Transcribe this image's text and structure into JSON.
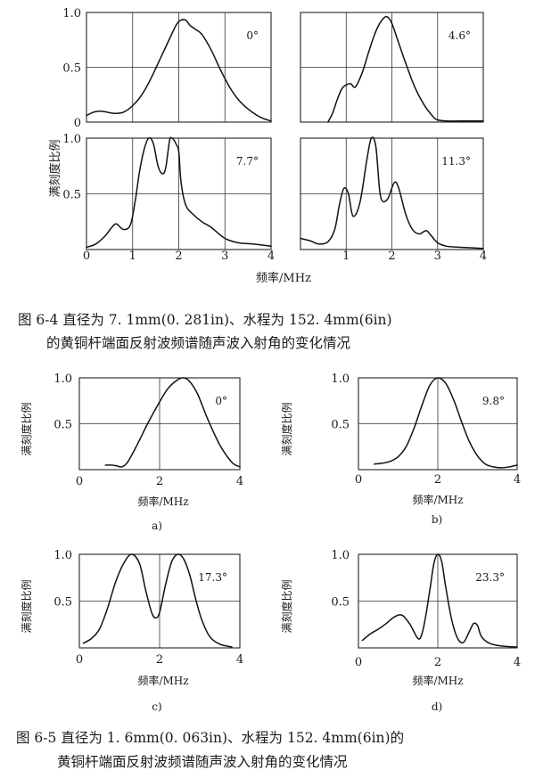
{
  "figure_6_4": {
    "caption_line1": "图 6-4   直径为 7. 1mm(0. 281in)、水程为 152. 4mm(6in)",
    "caption_line2": "的黄铜杆端面反射波频谱随声波入射角的变化情况",
    "ylabel": "满刻度比例",
    "xlabel": "频率/MHz"
  },
  "figure_6_5": {
    "caption_line1": "图 6-5   直径为 1. 6mm(0. 063in)、水程为 152. 4mm(6in)的",
    "caption_line2": "黄铜杆端面反射波频谱随声波入射角的变化情况"
  },
  "chart_data": [
    {
      "type": "line",
      "figure": "6-4",
      "panel": "top-left",
      "annotation": "0°",
      "xlim": [
        0,
        4
      ],
      "ylim": [
        0,
        1.0
      ],
      "xticks": [],
      "yticks": [
        "0",
        "0.5",
        "1.0"
      ],
      "xlabel": "",
      "ylabel": "",
      "series": [
        {
          "x": [
            0,
            0.15,
            0.3,
            0.45,
            0.6,
            0.8,
            1.0,
            1.2,
            1.4,
            1.6,
            1.8,
            1.95,
            2.05,
            2.15,
            2.25,
            2.35,
            2.5,
            2.7,
            2.9,
            3.1,
            3.3,
            3.5,
            3.7,
            3.85,
            4.0
          ],
          "y": [
            0.06,
            0.09,
            0.1,
            0.09,
            0.08,
            0.09,
            0.15,
            0.25,
            0.4,
            0.58,
            0.76,
            0.89,
            0.93,
            0.93,
            0.88,
            0.85,
            0.8,
            0.66,
            0.48,
            0.32,
            0.2,
            0.12,
            0.06,
            0.03,
            0.01
          ]
        }
      ]
    },
    {
      "type": "line",
      "figure": "6-4",
      "panel": "top-right",
      "annotation": "4.6°",
      "xlim": [
        0,
        4
      ],
      "ylim": [
        0,
        1.0
      ],
      "xticks": [],
      "yticks": [],
      "xlabel": "",
      "ylabel": "",
      "series": [
        {
          "x": [
            0.6,
            0.7,
            0.8,
            0.9,
            1.0,
            1.1,
            1.2,
            1.35,
            1.5,
            1.65,
            1.8,
            1.9,
            2.0,
            2.15,
            2.3,
            2.5,
            2.7,
            2.9,
            3.0,
            3.2,
            3.5,
            4.0
          ],
          "y": [
            0.0,
            0.08,
            0.2,
            0.3,
            0.34,
            0.35,
            0.32,
            0.45,
            0.65,
            0.83,
            0.94,
            0.96,
            0.9,
            0.72,
            0.54,
            0.32,
            0.16,
            0.05,
            0.02,
            0.01,
            0.01,
            0.01
          ]
        }
      ]
    },
    {
      "type": "line",
      "figure": "6-4",
      "panel": "bottom-left",
      "annotation": "7.7°",
      "xlim": [
        0,
        4
      ],
      "ylim": [
        0,
        1.0
      ],
      "xticks": [
        "0",
        "1",
        "2",
        "3",
        "4"
      ],
      "yticks": [
        "0.5",
        "1.0"
      ],
      "xlabel": "",
      "ylabel": "",
      "series": [
        {
          "x": [
            0,
            0.2,
            0.4,
            0.55,
            0.65,
            0.8,
            0.95,
            1.05,
            1.15,
            1.25,
            1.35,
            1.45,
            1.55,
            1.65,
            1.72,
            1.8,
            1.85,
            1.9,
            1.95,
            2.0,
            2.05,
            2.15,
            2.3,
            2.5,
            2.7,
            3.0,
            3.3,
            3.6,
            4.0
          ],
          "y": [
            0.02,
            0.05,
            0.12,
            0.2,
            0.23,
            0.18,
            0.22,
            0.42,
            0.7,
            0.9,
            1.0,
            0.95,
            0.75,
            0.68,
            0.74,
            0.98,
            1.0,
            0.98,
            0.94,
            0.88,
            0.6,
            0.4,
            0.32,
            0.25,
            0.2,
            0.1,
            0.06,
            0.05,
            0.03
          ]
        }
      ]
    },
    {
      "type": "line",
      "figure": "6-4",
      "panel": "bottom-right",
      "annotation": "11.3°",
      "xlim": [
        0,
        4
      ],
      "ylim": [
        0,
        1.0
      ],
      "xticks": [
        "1",
        "2",
        "3",
        "4"
      ],
      "yticks": [],
      "xlabel": "",
      "ylabel": "",
      "series": [
        {
          "x": [
            0,
            0.2,
            0.4,
            0.6,
            0.75,
            0.85,
            0.95,
            1.05,
            1.15,
            1.3,
            1.45,
            1.55,
            1.65,
            1.75,
            1.9,
            2.05,
            2.15,
            2.3,
            2.45,
            2.6,
            2.75,
            2.85,
            3.0,
            3.2,
            3.5,
            4.0
          ],
          "y": [
            0.1,
            0.08,
            0.05,
            0.07,
            0.18,
            0.4,
            0.55,
            0.5,
            0.3,
            0.42,
            0.8,
            1.0,
            0.92,
            0.48,
            0.45,
            0.6,
            0.55,
            0.32,
            0.18,
            0.14,
            0.17,
            0.13,
            0.06,
            0.03,
            0.02,
            0.01
          ]
        }
      ]
    },
    {
      "type": "line",
      "figure": "6-5",
      "panel": "a)",
      "annotation": "0°",
      "xlim": [
        0,
        4
      ],
      "ylim": [
        0,
        1.0
      ],
      "xticks": [
        "0",
        "2",
        "4"
      ],
      "yticks": [
        "0.5",
        "1.0"
      ],
      "xlabel": "频率/MHz",
      "ylabel": "满刻度比例",
      "series": [
        {
          "x": [
            0.65,
            0.8,
            0.95,
            1.05,
            1.2,
            1.45,
            1.7,
            1.95,
            2.2,
            2.45,
            2.6,
            2.75,
            2.95,
            3.2,
            3.5,
            3.8,
            4.0
          ],
          "y": [
            0.05,
            0.05,
            0.04,
            0.03,
            0.08,
            0.28,
            0.5,
            0.7,
            0.88,
            0.98,
            1.0,
            0.96,
            0.82,
            0.55,
            0.27,
            0.08,
            0.03
          ]
        }
      ]
    },
    {
      "type": "line",
      "figure": "6-5",
      "panel": "b)",
      "annotation": "9.8°",
      "xlim": [
        0,
        4
      ],
      "ylim": [
        0,
        1.0
      ],
      "xticks": [
        "0",
        "2",
        "4"
      ],
      "yticks": [
        "0.5",
        "1.0"
      ],
      "xlabel": "频率/MHz",
      "ylabel": "满刻度比例",
      "series": [
        {
          "x": [
            0.4,
            0.6,
            0.8,
            1.0,
            1.2,
            1.4,
            1.6,
            1.8,
            2.0,
            2.2,
            2.4,
            2.6,
            2.8,
            3.0,
            3.2,
            3.4,
            3.6,
            3.8,
            4.0
          ],
          "y": [
            0.06,
            0.07,
            0.09,
            0.14,
            0.25,
            0.45,
            0.7,
            0.92,
            1.0,
            0.94,
            0.76,
            0.52,
            0.3,
            0.15,
            0.06,
            0.03,
            0.02,
            0.03,
            0.05
          ]
        }
      ]
    },
    {
      "type": "line",
      "figure": "6-5",
      "panel": "c)",
      "annotation": "17.3°",
      "xlim": [
        0,
        4
      ],
      "ylim": [
        0,
        1.0
      ],
      "xticks": [
        "0",
        "2",
        "4"
      ],
      "yticks": [
        "0.5",
        "1.0"
      ],
      "xlabel": "频率/MHz",
      "ylabel": "满刻度比例",
      "series": [
        {
          "x": [
            0.1,
            0.3,
            0.5,
            0.7,
            0.9,
            1.1,
            1.3,
            1.5,
            1.65,
            1.8,
            1.9,
            2.0,
            2.15,
            2.3,
            2.45,
            2.6,
            2.75,
            2.9,
            3.05,
            3.25,
            3.5,
            3.8
          ],
          "y": [
            0.05,
            0.1,
            0.2,
            0.42,
            0.7,
            0.9,
            1.0,
            0.9,
            0.62,
            0.38,
            0.32,
            0.38,
            0.68,
            0.92,
            1.0,
            0.95,
            0.78,
            0.52,
            0.3,
            0.12,
            0.04,
            0.01
          ]
        }
      ]
    },
    {
      "type": "line",
      "figure": "6-5",
      "panel": "d)",
      "annotation": "23.3°",
      "xlim": [
        0,
        4
      ],
      "ylim": [
        0,
        1.0
      ],
      "xticks": [
        "0",
        "2",
        "4"
      ],
      "yticks": [
        "0.5",
        "1.0"
      ],
      "xlabel": "频率/MHz",
      "ylabel": "满刻度比例",
      "series": [
        {
          "x": [
            0.1,
            0.3,
            0.5,
            0.7,
            0.9,
            1.1,
            1.3,
            1.5,
            1.6,
            1.7,
            1.8,
            1.9,
            2.0,
            2.1,
            2.2,
            2.35,
            2.5,
            2.65,
            2.8,
            2.9,
            3.0,
            3.1,
            3.3,
            3.6,
            4.0
          ],
          "y": [
            0.08,
            0.15,
            0.2,
            0.26,
            0.33,
            0.35,
            0.25,
            0.1,
            0.15,
            0.35,
            0.62,
            0.9,
            1.0,
            0.92,
            0.65,
            0.3,
            0.1,
            0.06,
            0.18,
            0.26,
            0.24,
            0.12,
            0.05,
            0.02,
            0.01
          ]
        }
      ]
    }
  ]
}
